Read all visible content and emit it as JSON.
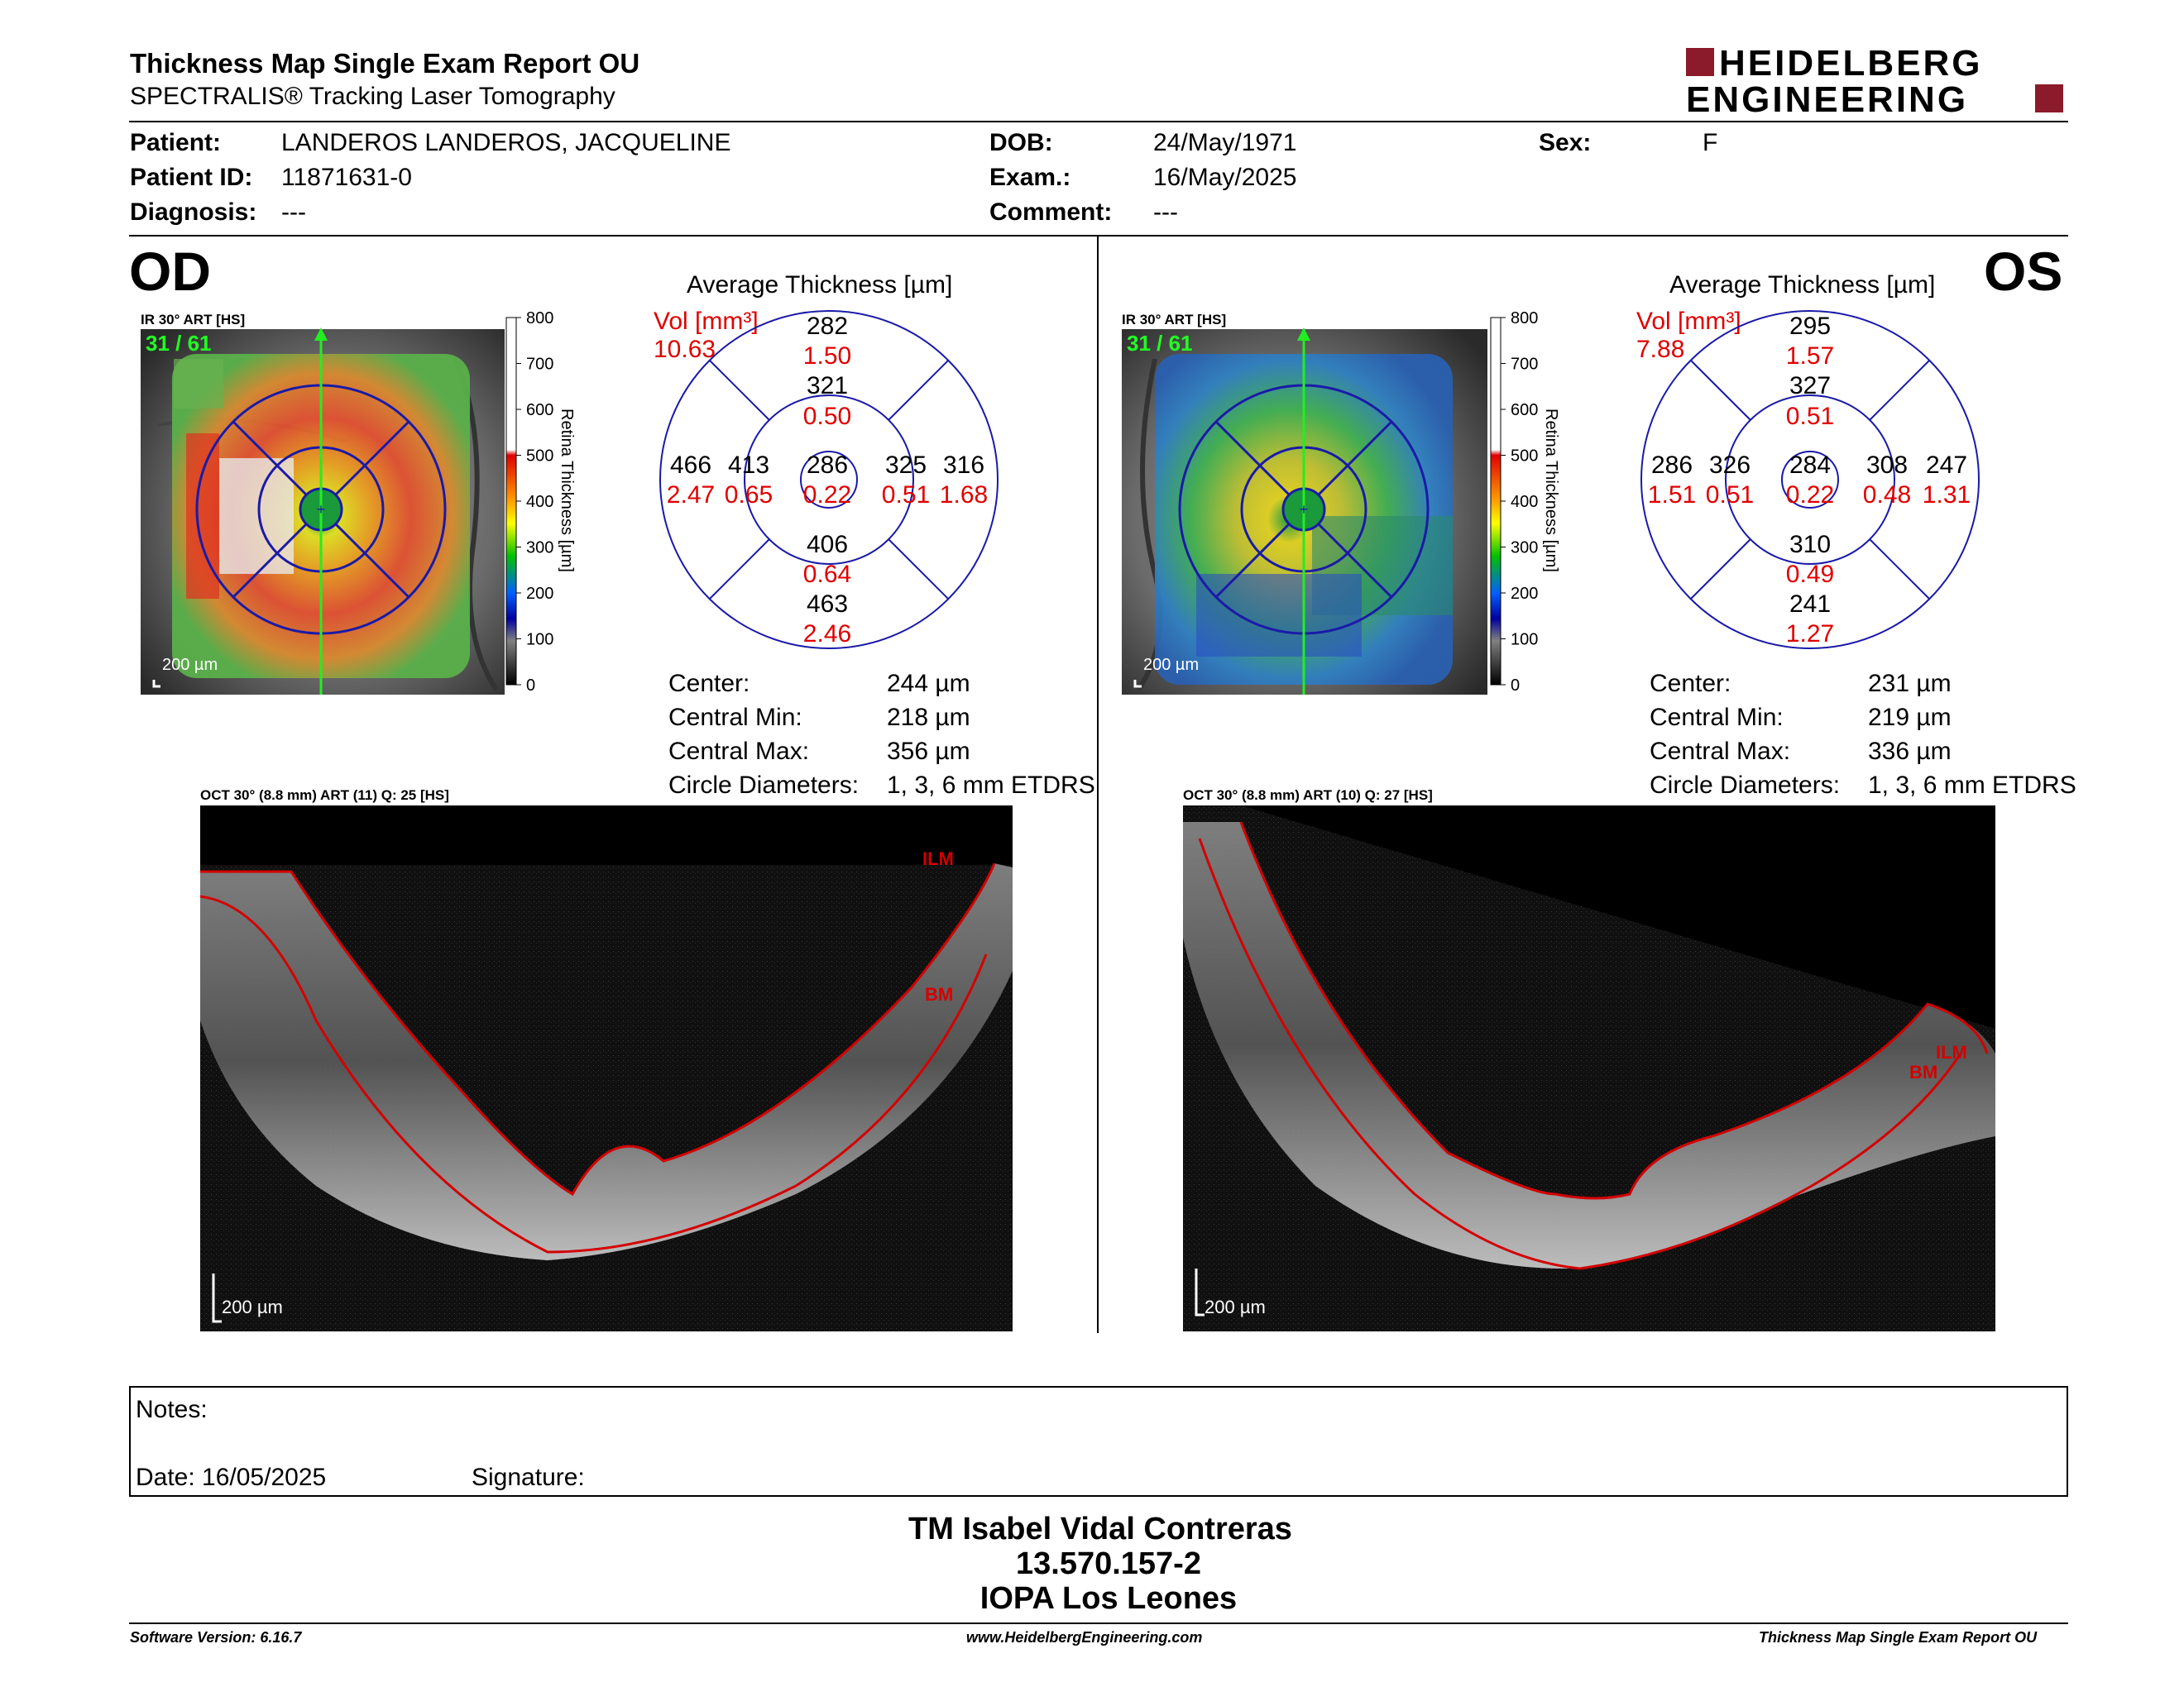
{
  "header": {
    "title": "Thickness Map Single Exam Report OU",
    "subtitle": "SPECTRALIS® Tracking Laser Tomography",
    "logo_line1": "HEIDELBERG",
    "logo_line2": "ENGINEERING",
    "logo_color": "#8b1a2b"
  },
  "patient": {
    "patient_label": "Patient:",
    "patient_value": "LANDEROS LANDEROS, JACQUELINE",
    "id_label": "Patient ID:",
    "id_value": "11871631-0",
    "diag_label": "Diagnosis:",
    "diag_value": "---",
    "dob_label": "DOB:",
    "dob_value": "24/May/1971",
    "exam_label": "Exam.:",
    "exam_value": "16/May/2025",
    "comment_label": "Comment:",
    "comment_value": "---",
    "sex_label": "Sex:",
    "sex_value": "F"
  },
  "od": {
    "eye_label": "OD",
    "ir_label": "IR 30° ART [HS]",
    "frame_counter": "31 / 61",
    "scale_label": "200 µm",
    "colorbar_ticks": [
      "800",
      "700",
      "600",
      "500",
      "400",
      "300",
      "200",
      "100",
      "0"
    ],
    "colorbar_title": "Retina Thickness [µm]",
    "avg_title": "Average Thickness [µm]",
    "vol_label": "Vol [mm³]",
    "vol_value": "10.63",
    "sectors": {
      "outer_superior": {
        "t": "282",
        "v": "1.50"
      },
      "inner_superior": {
        "t": "321",
        "v": "0.50"
      },
      "outer_nasal_left": {
        "t": "466",
        "v": "2.47"
      },
      "inner_left": {
        "t": "413",
        "v": "0.65"
      },
      "center": {
        "t": "286",
        "v": "0.22"
      },
      "inner_right": {
        "t": "325",
        "v": "0.51"
      },
      "outer_right": {
        "t": "316",
        "v": "1.68"
      },
      "inner_inferior": {
        "t": "406",
        "v": "0.64"
      },
      "outer_inferior": {
        "t": "463",
        "v": "2.46"
      }
    },
    "center_label": "Center:",
    "center_value": "244 µm",
    "cmin_label": "Central Min:",
    "cmin_value": "218 µm",
    "cmax_label": "Central Max:",
    "cmax_value": "356 µm",
    "circ_label": "Circle Diameters:",
    "circ_value": "1, 3, 6 mm ETDRS",
    "oct_label": "OCT 30° (8.8 mm) ART (11) Q: 25 [HS]",
    "oct_scale": "200 µm",
    "ilm": "ILM",
    "bm": "BM"
  },
  "os": {
    "eye_label": "OS",
    "ir_label": "IR 30° ART [HS]",
    "frame_counter": "31 / 61",
    "scale_label": "200 µm",
    "colorbar_ticks": [
      "800",
      "700",
      "600",
      "500",
      "400",
      "300",
      "200",
      "100",
      "0"
    ],
    "colorbar_title": "Retina Thickness [µm]",
    "avg_title": "Average Thickness [µm]",
    "vol_label": "Vol [mm³]",
    "vol_value": "7.88",
    "sectors": {
      "outer_superior": {
        "t": "295",
        "v": "1.57"
      },
      "inner_superior": {
        "t": "327",
        "v": "0.51"
      },
      "outer_nasal_left": {
        "t": "286",
        "v": "1.51"
      },
      "inner_left": {
        "t": "326",
        "v": "0.51"
      },
      "center": {
        "t": "284",
        "v": "0.22"
      },
      "inner_right": {
        "t": "308",
        "v": "0.48"
      },
      "outer_right": {
        "t": "247",
        "v": "1.31"
      },
      "inner_inferior": {
        "t": "310",
        "v": "0.49"
      },
      "outer_inferior": {
        "t": "241",
        "v": "1.27"
      }
    },
    "center_label": "Center:",
    "center_value": "231 µm",
    "cmin_label": "Central Min:",
    "cmin_value": "219 µm",
    "cmax_label": "Central Max:",
    "cmax_value": "336 µm",
    "circ_label": "Circle Diameters:",
    "circ_value": "1, 3, 6 mm ETDRS",
    "oct_label": "OCT 30° (8.8 mm) ART (10) Q: 27 [HS]",
    "oct_scale": "200 µm",
    "ilm": "ILM",
    "bm": "BM"
  },
  "notes": {
    "notes_label": "Notes:",
    "date_label": "Date: 16/05/2025",
    "signature_label": "Signature:"
  },
  "signer": {
    "name": "TM Isabel Vidal Contreras",
    "id": "13.570.157-2",
    "org": "IOPA Los Leones"
  },
  "footer": {
    "version": "Software Version: 6.16.7",
    "url": "www.HeidelbergEngineering.com",
    "report": "Thickness Map Single Exam Report OU"
  },
  "colors": {
    "ring": "#1a1aa8",
    "volume_red": "#e00000",
    "segmentation_red": "#d40000",
    "counter_green": "#22ff22"
  }
}
